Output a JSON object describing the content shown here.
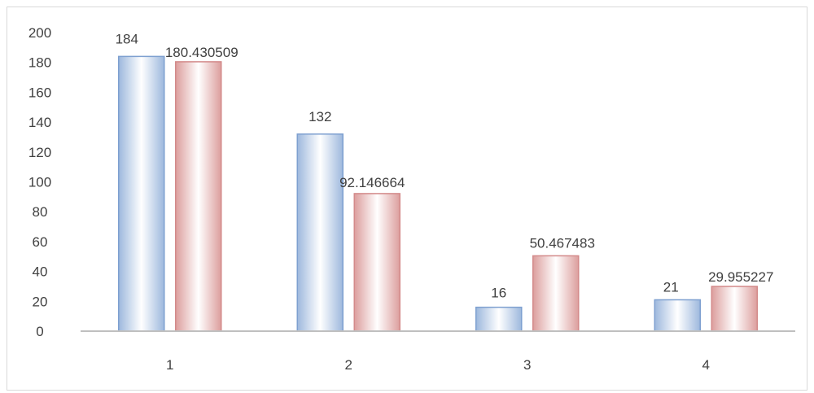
{
  "chart_data": {
    "type": "bar",
    "categories": [
      "1",
      "2",
      "3",
      "4"
    ],
    "series": [
      {
        "values": [
          184,
          132,
          16,
          21
        ],
        "color": "#b8cce4",
        "edge": "#7ea0d0"
      },
      {
        "values": [
          180.430509,
          92.146664,
          50.467483,
          29.955227
        ],
        "color": "#e6b9b8",
        "edge": "#d38a8a"
      }
    ],
    "data_labels": [
      [
        "184",
        "132",
        "16",
        "21"
      ],
      [
        "180.430509",
        "92.146664",
        "50.467483",
        "29.955227"
      ]
    ],
    "ylim": [
      0,
      200
    ],
    "yticks": [
      0,
      20,
      40,
      60,
      80,
      100,
      120,
      140,
      160,
      180,
      200
    ],
    "grid": false,
    "legend": "none"
  }
}
